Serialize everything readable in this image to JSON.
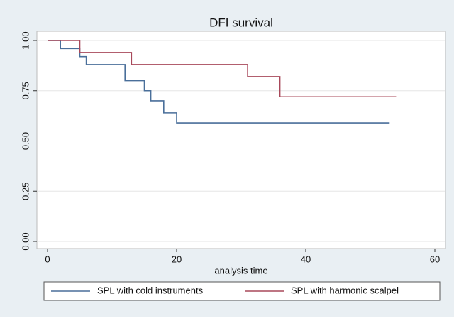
{
  "chart_data": {
    "type": "step",
    "title": "DFI survival",
    "x_label": "analysis time",
    "xlim": [
      0,
      60
    ],
    "xticks": [
      0,
      20,
      40,
      60
    ],
    "ylim": [
      0,
      1
    ],
    "yticks": [
      {
        "value": 0,
        "label": "0.00"
      },
      {
        "value": 0.25,
        "label": "0.25"
      },
      {
        "value": 0.5,
        "label": "0.50"
      },
      {
        "value": 0.75,
        "label": "0.75"
      },
      {
        "value": 1,
        "label": "1.00"
      }
    ],
    "grid": true,
    "legend": "bottom",
    "series": [
      {
        "name": "SPL with cold instruments",
        "color": "#4a6f9a",
        "x": [
          0,
          2,
          5,
          6,
          12,
          15,
          16,
          18,
          20,
          53
        ],
        "values": [
          1,
          0.96,
          0.92,
          0.88,
          0.8,
          0.75,
          0.7,
          0.64,
          0.59,
          0.59
        ]
      },
      {
        "name": "SPL with harmonic scalpel",
        "color": "#a8485a",
        "x": [
          0,
          5,
          13,
          31,
          36,
          54
        ],
        "values": [
          1,
          0.94,
          0.88,
          0.82,
          0.72,
          0.72
        ]
      }
    ]
  }
}
